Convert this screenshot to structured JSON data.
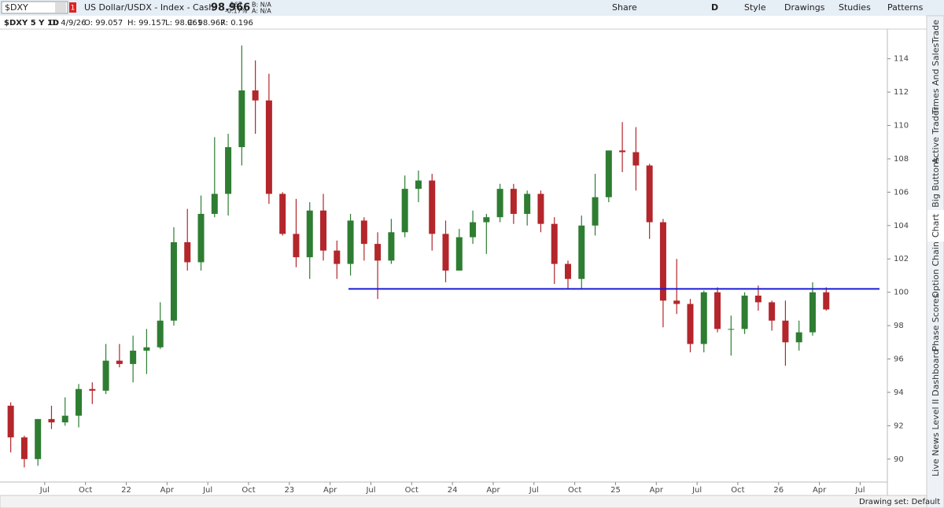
{
  "header": {
    "symbol": "$DXY",
    "alert_count": "1",
    "description": "US Dollar/USDX - Index - Cash",
    "last": "98.966",
    "change": ".167",
    "change_pct": "-0.17%",
    "bid": "B: N/A",
    "ask": "A: N/A",
    "share": "Share",
    "period": "D",
    "style": "Style",
    "drawings": "Drawings",
    "studies": "Studies",
    "patterns": "Patterns"
  },
  "info": {
    "name": "$DXY 5 Y 1D",
    "date": "D: 4/9/26",
    "open": "O: 99.057",
    "high": "H: 99.157",
    "low": "L: 98.961",
    "close": "C: 98.967",
    "range": "R: 0.196"
  },
  "side_tabs": [
    "Trade",
    "Times And Sales",
    "Active Trader",
    "Big Buttons",
    "Chart",
    "Option Chain",
    "Phase Scores",
    "Dashboard",
    "Level II",
    "Live News"
  ],
  "status": {
    "drawing_set": "Drawing set: Default"
  },
  "chart_data": {
    "type": "candlestick",
    "categories": [
      null,
      null,
      null,
      "Jul",
      null,
      null,
      "Oct",
      null,
      null,
      "22",
      null,
      null,
      "Apr",
      null,
      null,
      "Jul",
      null,
      null,
      "Oct",
      null,
      null,
      "23",
      null,
      null,
      "Apr",
      null,
      null,
      "Jul",
      null,
      null,
      "Oct",
      null,
      null,
      "24",
      null,
      null,
      "Apr",
      null,
      null,
      "Jul",
      null,
      null,
      "Oct",
      null,
      null,
      "25",
      null,
      null,
      "Apr",
      null,
      null,
      "Jul",
      null,
      null,
      "Oct",
      null,
      null,
      "26",
      null,
      null,
      "Apr",
      null,
      null,
      "Jul",
      null
    ],
    "open": [
      93.2,
      91.3,
      90.0,
      92.4,
      92.2,
      92.6,
      94.2,
      94.1,
      95.9,
      95.7,
      96.5,
      96.7,
      98.3,
      103.0,
      101.8,
      104.7,
      105.9,
      108.7,
      112.1,
      111.5,
      105.9,
      103.5,
      102.1,
      104.9,
      102.5,
      101.7,
      104.3,
      102.9,
      101.9,
      103.6,
      106.2,
      106.7,
      103.5,
      101.3,
      103.3,
      104.2,
      104.5,
      106.2,
      104.7,
      105.9,
      104.1,
      101.7,
      100.8,
      104.0,
      105.7,
      108.5,
      108.4,
      107.6,
      104.2,
      99.5,
      99.3,
      96.9,
      100.0,
      97.8,
      97.8,
      99.8,
      99.4,
      98.3,
      97.0,
      97.6,
      100.0,
      null,
      null,
      null,
      null
    ],
    "high": [
      93.4,
      91.4,
      92.4,
      93.2,
      93.7,
      94.5,
      94.6,
      96.9,
      96.9,
      97.4,
      97.8,
      99.4,
      103.9,
      105.0,
      105.8,
      109.3,
      109.5,
      114.8,
      113.9,
      113.1,
      106.0,
      105.6,
      105.4,
      105.9,
      103.1,
      104.7,
      104.5,
      103.6,
      104.4,
      107.0,
      107.3,
      107.1,
      104.3,
      103.8,
      104.9,
      104.7,
      106.5,
      106.5,
      106.1,
      106.1,
      104.5,
      101.9,
      104.6,
      107.1,
      108.5,
      110.2,
      109.9,
      107.7,
      104.4,
      102.0,
      99.6,
      100.1,
      100.3,
      98.6,
      100.0,
      100.4,
      99.5,
      99.5,
      98.3,
      100.6,
      100.3,
      null,
      null,
      null,
      null
    ],
    "low": [
      90.4,
      89.5,
      89.6,
      91.8,
      92.0,
      91.9,
      93.3,
      93.9,
      95.5,
      94.6,
      95.1,
      96.6,
      98.0,
      101.3,
      101.3,
      104.5,
      104.6,
      107.6,
      109.5,
      105.3,
      103.4,
      101.5,
      100.8,
      101.9,
      100.8,
      101.0,
      101.9,
      99.6,
      101.7,
      103.3,
      105.4,
      102.5,
      100.6,
      101.3,
      102.9,
      102.3,
      104.2,
      104.1,
      104.0,
      103.6,
      100.5,
      100.2,
      100.2,
      103.4,
      105.4,
      107.2,
      106.1,
      103.2,
      97.9,
      98.7,
      96.4,
      96.4,
      97.6,
      96.2,
      97.5,
      98.9,
      97.7,
      95.6,
      96.5,
      97.4,
      98.9,
      null,
      null,
      null,
      null
    ],
    "close": [
      91.3,
      90.0,
      92.4,
      92.2,
      92.6,
      94.2,
      94.1,
      95.9,
      95.7,
      96.5,
      96.7,
      98.3,
      103.0,
      101.8,
      104.7,
      105.9,
      108.7,
      112.1,
      111.5,
      105.9,
      103.5,
      102.1,
      104.9,
      102.5,
      101.7,
      104.3,
      102.9,
      101.9,
      103.6,
      106.2,
      106.7,
      103.5,
      101.3,
      103.3,
      104.2,
      104.5,
      106.2,
      104.7,
      105.9,
      104.1,
      101.7,
      100.8,
      104.0,
      105.7,
      108.5,
      108.4,
      107.6,
      104.2,
      99.5,
      99.3,
      96.9,
      100.0,
      97.8,
      97.8,
      99.8,
      99.4,
      98.3,
      97.0,
      97.6,
      100.0,
      98.97,
      null,
      null,
      null,
      null
    ],
    "up_color": "#2e7d32",
    "down_color": "#b3262b",
    "horizontal_line": {
      "value": 100.2,
      "color": "#1a1ad6"
    },
    "ylim": [
      89,
      115.4
    ],
    "yticks": [
      90,
      92,
      94,
      96,
      98,
      100,
      102,
      104,
      106,
      108,
      110,
      112,
      114
    ]
  }
}
